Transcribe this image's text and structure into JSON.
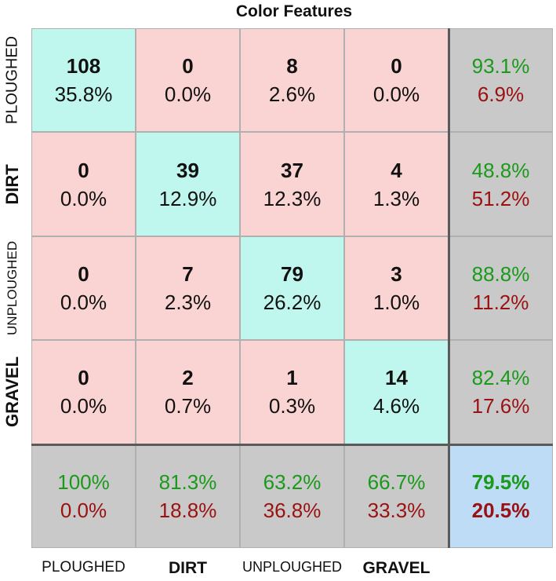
{
  "chart_data": {
    "type": "table",
    "title": "Color Features",
    "row_labels": [
      "PLOUGHED",
      "DIRT",
      "UNPLOUGHED",
      "GRAVEL"
    ],
    "col_labels": [
      "PLOUGHED",
      "DIRT",
      "UNPLOUGHED",
      "GRAVEL"
    ],
    "matrix": [
      [
        {
          "count": "108",
          "pct": "35.8%"
        },
        {
          "count": "0",
          "pct": "0.0%"
        },
        {
          "count": "8",
          "pct": "2.6%"
        },
        {
          "count": "0",
          "pct": "0.0%"
        }
      ],
      [
        {
          "count": "0",
          "pct": "0.0%"
        },
        {
          "count": "39",
          "pct": "12.9%"
        },
        {
          "count": "37",
          "pct": "12.3%"
        },
        {
          "count": "4",
          "pct": "1.3%"
        }
      ],
      [
        {
          "count": "0",
          "pct": "0.0%"
        },
        {
          "count": "7",
          "pct": "2.3%"
        },
        {
          "count": "79",
          "pct": "26.2%"
        },
        {
          "count": "3",
          "pct": "1.0%"
        }
      ],
      [
        {
          "count": "0",
          "pct": "0.0%"
        },
        {
          "count": "2",
          "pct": "0.7%"
        },
        {
          "count": "1",
          "pct": "0.3%"
        },
        {
          "count": "14",
          "pct": "4.6%"
        }
      ]
    ],
    "row_summary": [
      {
        "correct": "93.1%",
        "error": "6.9%"
      },
      {
        "correct": "48.8%",
        "error": "51.2%"
      },
      {
        "correct": "88.8%",
        "error": "11.2%"
      },
      {
        "correct": "82.4%",
        "error": "17.6%"
      }
    ],
    "col_summary": [
      {
        "correct": "100%",
        "error": "0.0%"
      },
      {
        "correct": "81.3%",
        "error": "18.8%"
      },
      {
        "correct": "63.2%",
        "error": "36.8%"
      },
      {
        "correct": "66.7%",
        "error": "33.3%"
      }
    ],
    "overall": {
      "correct": "79.5%",
      "error": "20.5%"
    }
  },
  "colors": {
    "diagonal": "#bff7ee",
    "off_diagonal": "#fad3d3",
    "summary": "#c9c9c9",
    "overall": "#bfdcf7",
    "correct_text": "#1a9a1a",
    "error_text": "#9b1111",
    "count_text": "#111111"
  }
}
